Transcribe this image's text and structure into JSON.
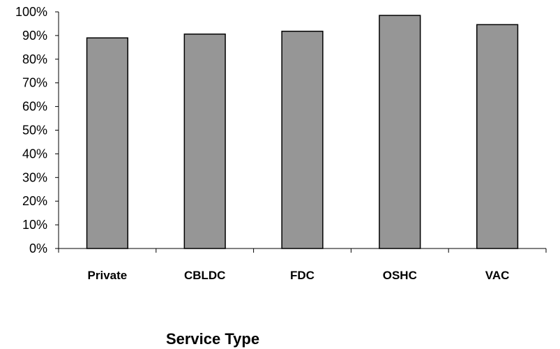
{
  "chart_data": {
    "type": "bar",
    "title": "",
    "xlabel": "Service Type",
    "ylabel": "",
    "categories": [
      "Private",
      "CBLDC",
      "FDC",
      "OSHC",
      "VAC"
    ],
    "values": [
      89,
      90.6,
      91.8,
      98.5,
      94.6
    ],
    "ylim": [
      0,
      100
    ],
    "yticks": [
      "0%",
      "10%",
      "20%",
      "30%",
      "40%",
      "50%",
      "60%",
      "70%",
      "80%",
      "90%",
      "100%"
    ],
    "grid": false,
    "legend": "none",
    "bar_color": "#969696",
    "bar_stroke": "#000000"
  }
}
